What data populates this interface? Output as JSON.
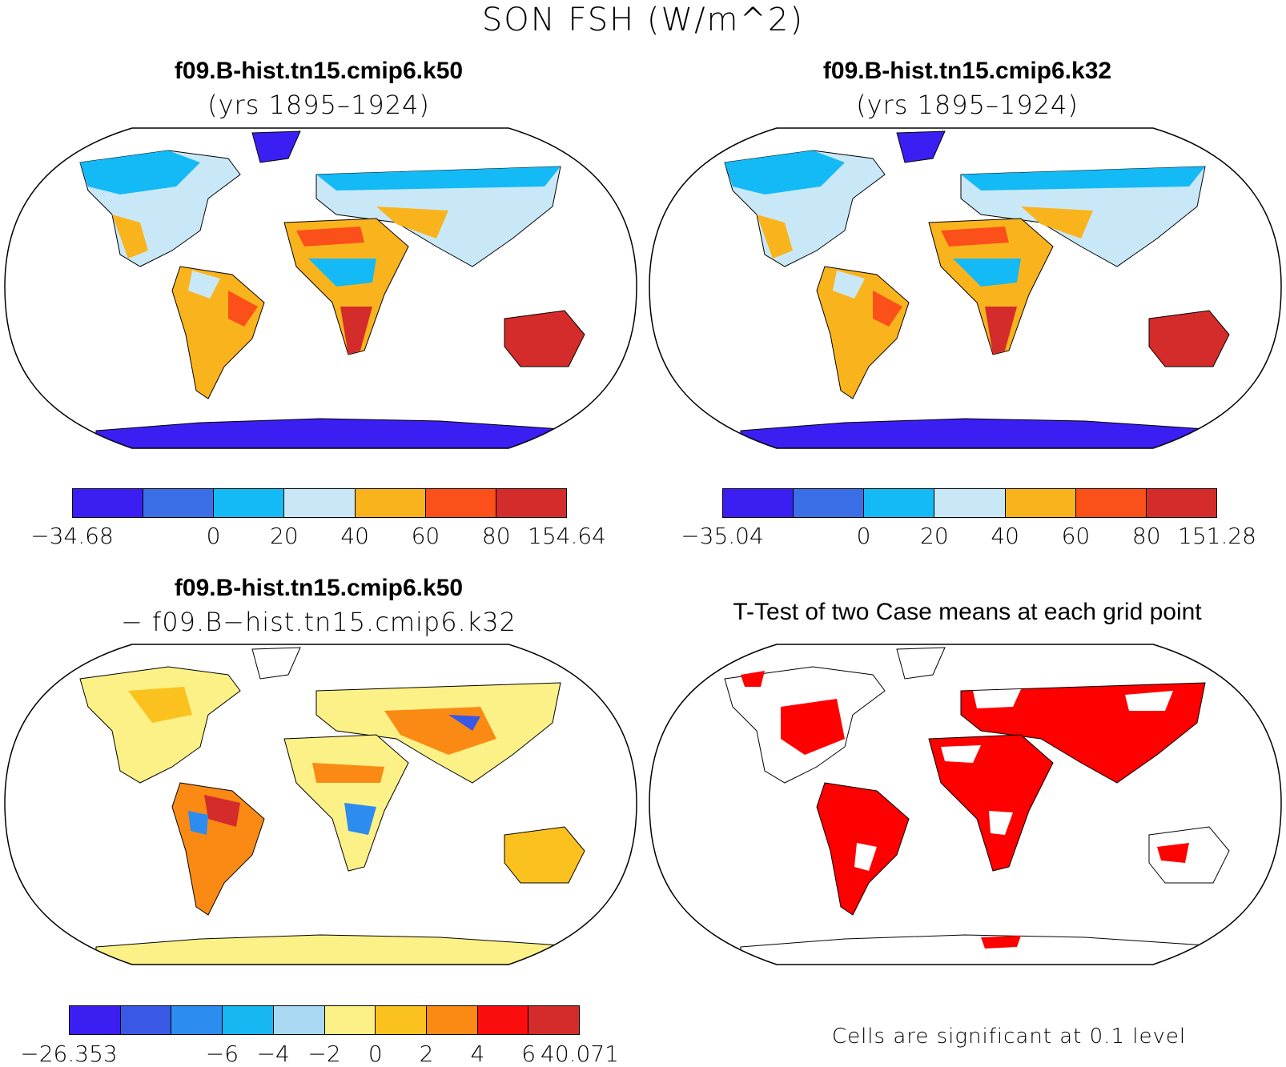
{
  "title": "SON FSH (W/m^2)",
  "colors": {
    "land_default": "#c9e8f7",
    "outline": "#000000",
    "significant": "#ff0000"
  },
  "panels": [
    {
      "title": "f09.B-hist.tn15.cmip6.k50",
      "subtitle": "(yrs 1895–1924)",
      "colorbar": {
        "colors": [
          "#3b1ff2",
          "#3a6fe8",
          "#14baf5",
          "#c9e8f7",
          "#f9b41d",
          "#fb501a",
          "#d42b2b"
        ],
        "labels": [
          "−34.68",
          "0",
          "20",
          "40",
          "60",
          "80",
          "154.64"
        ],
        "boundaries": [
          -34.68,
          0,
          20,
          40,
          60,
          80,
          154.64
        ]
      }
    },
    {
      "title": "f09.B-hist.tn15.cmip6.k32",
      "subtitle": "(yrs 1895–1924)",
      "colorbar": {
        "colors": [
          "#3b1ff2",
          "#3a6fe8",
          "#14baf5",
          "#c9e8f7",
          "#f9b41d",
          "#fb501a",
          "#d42b2b"
        ],
        "labels": [
          "−35.04",
          "0",
          "20",
          "40",
          "60",
          "80",
          "151.28"
        ],
        "boundaries": [
          -35.04,
          0,
          20,
          40,
          60,
          80,
          151.28
        ]
      }
    },
    {
      "title": "f09.B-hist.tn15.cmip6.k50",
      "subtitle": "− f09.B−hist.tn15.cmip6.k32",
      "colorbar": {
        "colors": [
          "#3b1ff2",
          "#3a58e6",
          "#2d8cf0",
          "#16b7f2",
          "#a8d8f2",
          "#fcf186",
          "#fbc21f",
          "#fb8a14",
          "#fb0d0d",
          "#d42b2b"
        ],
        "labels": [
          "−26.353",
          "−6",
          "−4",
          "−2",
          "0",
          "2",
          "4",
          "6",
          "40.071"
        ],
        "boundaries": [
          -26.353,
          -6,
          -4,
          -2,
          0,
          2,
          4,
          6,
          40.071
        ]
      }
    },
    {
      "title": "T-Test of two Case means at each grid point",
      "note": "Cells are significant at 0.1 level"
    }
  ]
}
